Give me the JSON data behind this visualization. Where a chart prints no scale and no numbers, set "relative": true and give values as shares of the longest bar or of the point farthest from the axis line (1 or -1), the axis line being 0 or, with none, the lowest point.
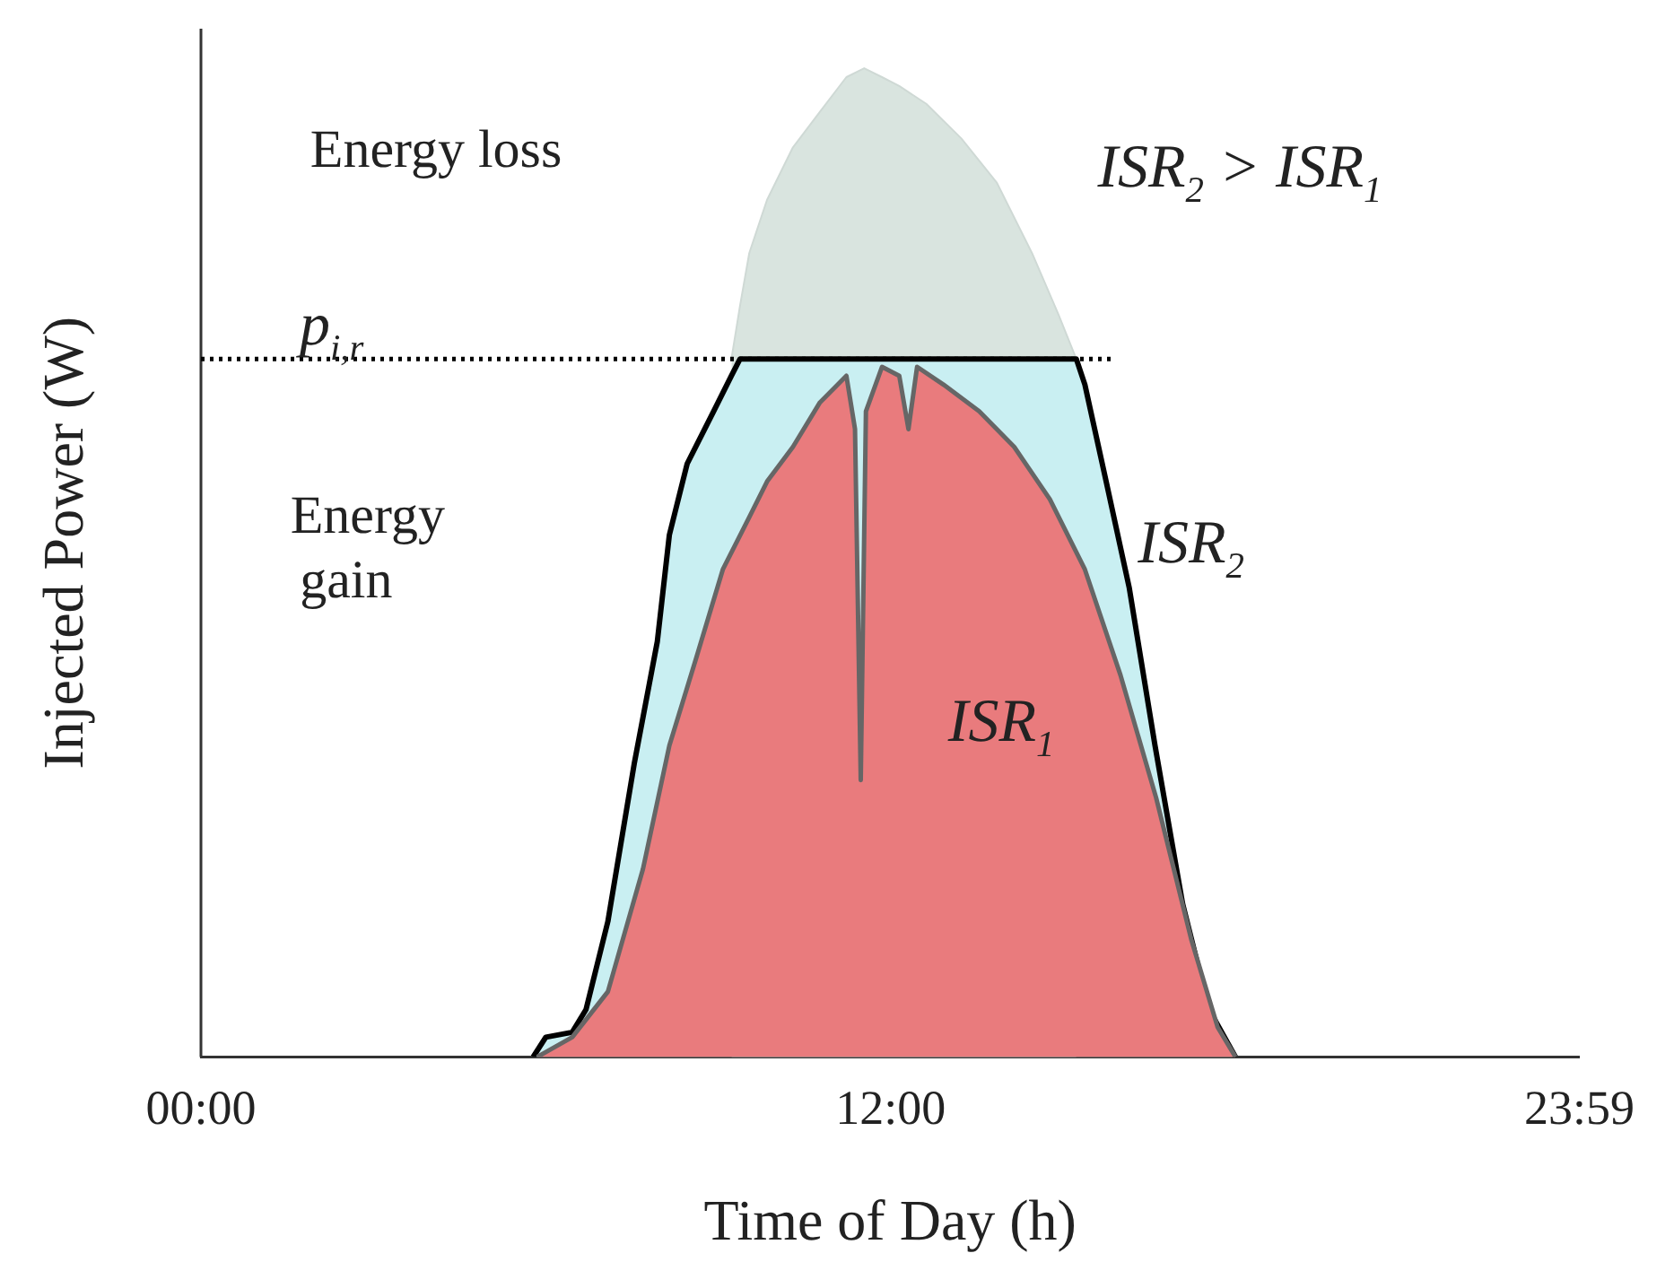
{
  "chart_data": {
    "type": "area",
    "relative": true,
    "xlabel": "Time of Day (h)",
    "ylabel": "Injected Power (W)",
    "xlim": [
      0,
      23.983
    ],
    "xticks": [
      {
        "value": 0,
        "label": "00:00"
      },
      {
        "value": 12,
        "label": "12:00"
      },
      {
        "value": 23.983,
        "label": "23:59"
      }
    ],
    "grid": false,
    "legend": false,
    "series": [
      {
        "color": "#d9e4df",
        "x": [
          9.23,
          9.38,
          9.54,
          9.85,
          10.3,
          10.77,
          11.23,
          11.54,
          11.85,
          12.15,
          12.62,
          13.23,
          13.85,
          14.46,
          14.92,
          15.23
        ],
        "values": [
          0.706,
          0.76,
          0.813,
          0.867,
          0.92,
          0.956,
          0.991,
          1.0,
          0.991,
          0.982,
          0.964,
          0.929,
          0.884,
          0.813,
          0.751,
          0.706
        ]
      },
      {
        "name": "ISR$_{2}$",
        "color": "#c9eff2",
        "x": [
          5.78,
          6.0,
          6.46,
          6.7,
          7.08,
          7.54,
          7.94,
          8.15,
          8.46,
          8.92,
          9.23,
          9.38,
          15.23,
          15.38,
          15.75,
          16.15,
          16.6,
          17.08,
          17.54,
          18.0
        ],
        "values": [
          0,
          0.02,
          0.025,
          0.048,
          0.137,
          0.297,
          0.42,
          0.528,
          0.6,
          0.653,
          0.689,
          0.706,
          0.706,
          0.68,
          0.582,
          0.475,
          0.315,
          0.155,
          0.048,
          0
        ]
      },
      {
        "name": "ISR$_{1}$",
        "color": "#e97b7d",
        "x": [
          5.85,
          6.46,
          7.08,
          7.69,
          8.15,
          8.62,
          9.08,
          9.54,
          9.85,
          10.3,
          10.77,
          11.23,
          11.38,
          11.48,
          11.57,
          11.85,
          12.15,
          12.31,
          12.46,
          12.92,
          13.54,
          14.15,
          14.77,
          15.38,
          16.0,
          16.62,
          17.23,
          17.69,
          18.0
        ],
        "values": [
          0,
          0.02,
          0.066,
          0.19,
          0.315,
          0.404,
          0.493,
          0.546,
          0.582,
          0.617,
          0.662,
          0.689,
          0.635,
          0.28,
          0.653,
          0.698,
          0.689,
          0.635,
          0.698,
          0.68,
          0.653,
          0.617,
          0.564,
          0.493,
          0.386,
          0.262,
          0.119,
          0.03,
          0
        ]
      }
    ],
    "ref_lines": [
      {
        "axis": "y",
        "value": 0.706,
        "label": "p$_{i,r}$",
        "line_style": "dotted",
        "color": "#000000"
      }
    ],
    "annotations": [
      "Energy loss",
      "Energy gain",
      "ISR$_{2}$ > ISR$_{1}$"
    ]
  }
}
